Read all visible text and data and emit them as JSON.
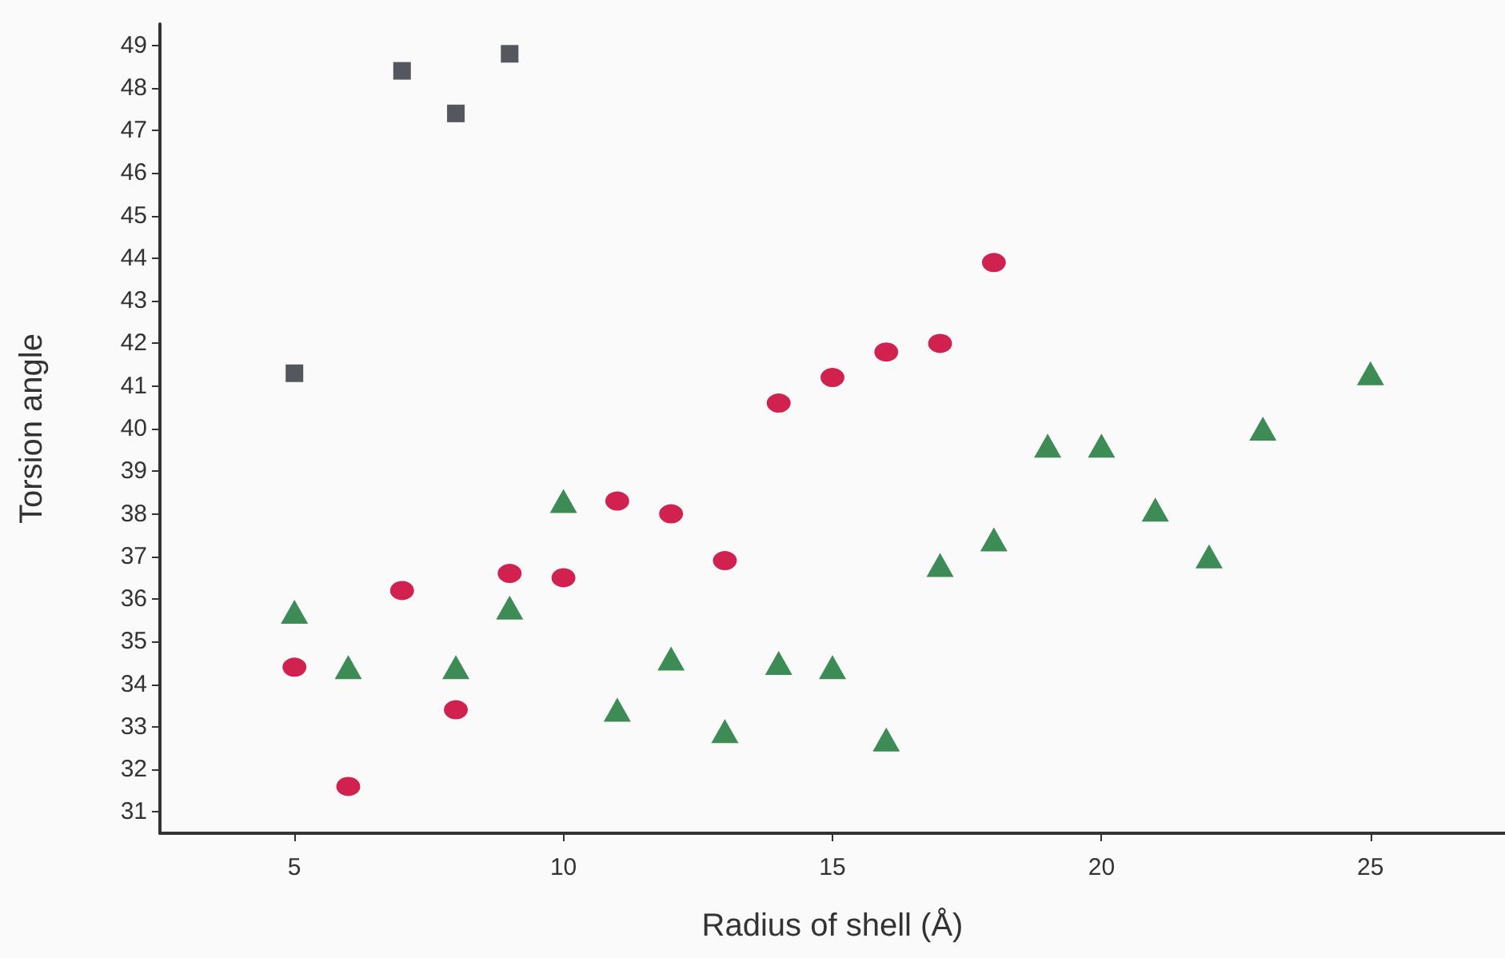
{
  "chart_data": {
    "type": "scatter",
    "xlabel": "Radius of shell (Å)",
    "ylabel": "Torsion angle",
    "xlim": [
      2.5,
      27.5
    ],
    "xticks": [
      5,
      10,
      15,
      20,
      25
    ],
    "ylim": [
      30.5,
      49.5
    ],
    "yticks": [
      31,
      32,
      33,
      34,
      35,
      36,
      37,
      38,
      39,
      40,
      41,
      42,
      43,
      44,
      45,
      46,
      47,
      48,
      49
    ],
    "grid": false,
    "series": [
      {
        "color": "#55575e",
        "marker": "square",
        "x": [
          5,
          7,
          8,
          9
        ],
        "values": [
          41.3,
          48.4,
          47.4,
          48.8
        ]
      },
      {
        "color": "#d0214f",
        "marker": "circle",
        "x": [
          5,
          6,
          7,
          8,
          9,
          10,
          11,
          12,
          13,
          14,
          15,
          16,
          17,
          18
        ],
        "values": [
          34.4,
          31.6,
          36.2,
          33.4,
          36.6,
          36.5,
          38.3,
          38.0,
          36.9,
          40.6,
          41.2,
          41.8,
          42.0,
          43.9
        ]
      },
      {
        "color": "#3d8b55",
        "marker": "triangle",
        "x": [
          5,
          6,
          8,
          9,
          10,
          11,
          12,
          13,
          14,
          15,
          16,
          17,
          18,
          19,
          20,
          21,
          22,
          23,
          25
        ],
        "values": [
          35.7,
          34.4,
          34.4,
          35.8,
          38.3,
          33.4,
          34.6,
          32.9,
          34.5,
          34.4,
          32.7,
          36.8,
          37.4,
          39.6,
          39.6,
          38.1,
          37.0,
          40.0,
          41.3
        ]
      }
    ]
  }
}
